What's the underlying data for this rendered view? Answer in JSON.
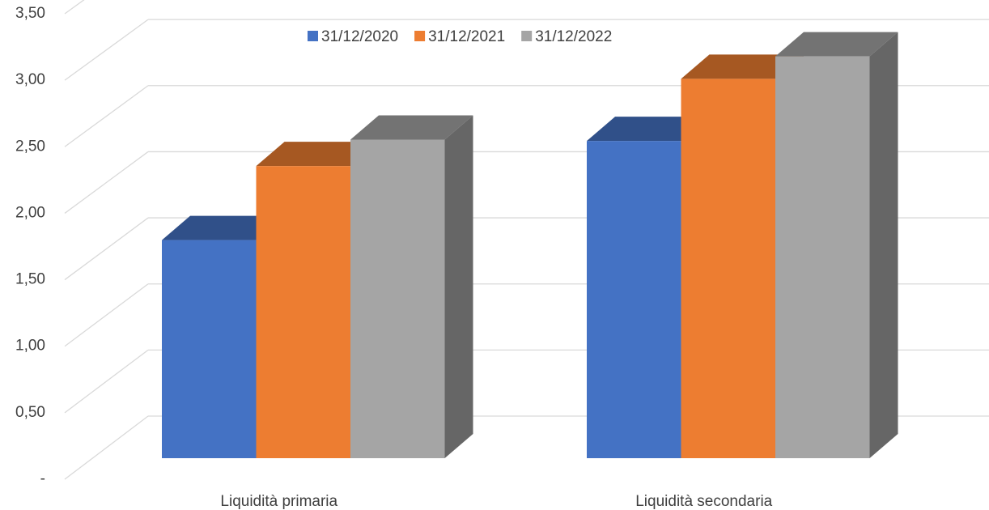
{
  "chart_data": {
    "type": "bar3d",
    "categories": [
      "Liquidità primaria",
      "Liquidità secondaria"
    ],
    "series": [
      {
        "name": "31/12/2020",
        "color": "#4472c4",
        "values": [
          1.65,
          2.4
        ]
      },
      {
        "name": "31/12/2021",
        "color": "#ed7d31",
        "values": [
          2.21,
          2.87
        ]
      },
      {
        "name": "31/12/2022",
        "color": "#a5a5a5",
        "values": [
          2.41,
          3.04
        ]
      }
    ],
    "ylim": [
      0,
      3.5
    ],
    "yticks": [
      {
        "value": 0,
        "label": "-"
      },
      {
        "value": 0.5,
        "label": "0,50"
      },
      {
        "value": 1,
        "label": "1,00"
      },
      {
        "value": 1.5,
        "label": "1,50"
      },
      {
        "value": 2,
        "label": "2,00"
      },
      {
        "value": 2.5,
        "label": "2,50"
      },
      {
        "value": 3,
        "label": "3,00"
      },
      {
        "value": 3.5,
        "label": "3,50"
      }
    ],
    "grid": true,
    "legend": "top"
  }
}
